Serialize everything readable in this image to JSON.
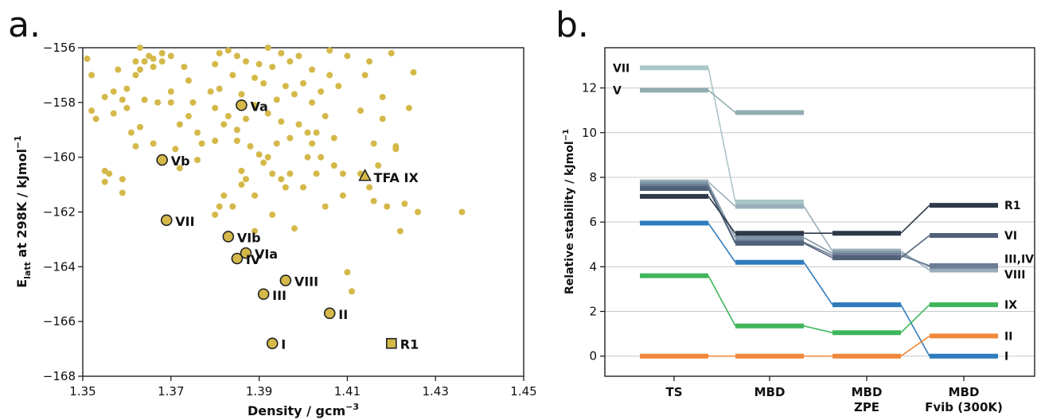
{
  "chart_data": [
    {
      "type": "scatter",
      "panel_label": "a.",
      "xlabel": "Density / gcm",
      "xlabel_sup": "−3",
      "ylabel_main": "E",
      "ylabel_sub": "latt",
      "ylabel_rest": " at 298K / kJmol",
      "ylabel_sup": "−1",
      "xlim": [
        1.35,
        1.45
      ],
      "ylim": [
        -168,
        -156
      ],
      "xticks": [
        1.35,
        1.37,
        1.39,
        1.41,
        1.43,
        1.45
      ],
      "xtick_labels": [
        "1.35",
        "1.37",
        "1.39",
        "1.41",
        "1.43",
        "1.45"
      ],
      "yticks": [
        -168,
        -166,
        -164,
        -162,
        -160,
        -158,
        -156
      ],
      "ytick_labels": [
        "−168",
        "−166",
        "−164",
        "−162",
        "−160",
        "−158",
        "−156"
      ],
      "marker_color": "#d4b94a",
      "grid": false,
      "background_points": [
        [
          1.351,
          -156.4
        ],
        [
          1.352,
          -157.0
        ],
        [
          1.352,
          -158.3
        ],
        [
          1.353,
          -158.6
        ],
        [
          1.355,
          -157.8
        ],
        [
          1.355,
          -160.5
        ],
        [
          1.355,
          -160.9
        ],
        [
          1.356,
          -160.6
        ],
        [
          1.357,
          -157.6
        ],
        [
          1.357,
          -158.4
        ],
        [
          1.358,
          -156.8
        ],
        [
          1.359,
          -157.9
        ],
        [
          1.359,
          -161.3
        ],
        [
          1.359,
          -160.8
        ],
        [
          1.36,
          -158.2
        ],
        [
          1.36,
          -157.5
        ],
        [
          1.361,
          -159.1
        ],
        [
          1.362,
          -156.5
        ],
        [
          1.362,
          -157.0
        ],
        [
          1.362,
          -159.6
        ],
        [
          1.363,
          -156.0
        ],
        [
          1.363,
          -156.8
        ],
        [
          1.363,
          -158.9
        ],
        [
          1.364,
          -156.5
        ],
        [
          1.364,
          -157.9
        ],
        [
          1.365,
          -156.3
        ],
        [
          1.366,
          -156.4
        ],
        [
          1.366,
          -156.7
        ],
        [
          1.366,
          -159.5
        ],
        [
          1.367,
          -158.0
        ],
        [
          1.368,
          -156.5
        ],
        [
          1.368,
          -156.2
        ],
        [
          1.37,
          -156.3
        ],
        [
          1.37,
          -157.6
        ],
        [
          1.37,
          -158.0
        ],
        [
          1.371,
          -159.7
        ],
        [
          1.372,
          -158.8
        ],
        [
          1.372,
          -160.4
        ],
        [
          1.373,
          -156.7
        ],
        [
          1.374,
          -157.2
        ],
        [
          1.374,
          -158.5
        ],
        [
          1.375,
          -158.0
        ],
        [
          1.376,
          -160.1
        ],
        [
          1.376,
          -159.1
        ],
        [
          1.377,
          -159.5
        ],
        [
          1.379,
          -157.6
        ],
        [
          1.38,
          -156.6
        ],
        [
          1.38,
          -158.2
        ],
        [
          1.38,
          -159.4
        ],
        [
          1.38,
          -162.1
        ],
        [
          1.381,
          -156.2
        ],
        [
          1.381,
          -157.5
        ],
        [
          1.381,
          -161.8
        ],
        [
          1.382,
          -158.8
        ],
        [
          1.382,
          -161.4
        ],
        [
          1.383,
          -158.5
        ],
        [
          1.383,
          -156.1
        ],
        [
          1.384,
          -157.0
        ],
        [
          1.384,
          -161.8
        ],
        [
          1.385,
          -159.0
        ],
        [
          1.385,
          -159.4
        ],
        [
          1.385,
          -156.3
        ],
        [
          1.386,
          -157.7
        ],
        [
          1.386,
          -160.5
        ],
        [
          1.386,
          -161.0
        ],
        [
          1.387,
          -156.5
        ],
        [
          1.387,
          -158.6
        ],
        [
          1.387,
          -160.8
        ],
        [
          1.388,
          -159.6
        ],
        [
          1.389,
          -157.1
        ],
        [
          1.389,
          -158.1
        ],
        [
          1.389,
          -161.4
        ],
        [
          1.389,
          -162.7
        ],
        [
          1.39,
          -156.6
        ],
        [
          1.39,
          -159.9
        ],
        [
          1.391,
          -160.2
        ],
        [
          1.391,
          -157.3
        ],
        [
          1.392,
          -156.0
        ],
        [
          1.392,
          -158.4
        ],
        [
          1.392,
          -160.0
        ],
        [
          1.393,
          -156.7
        ],
        [
          1.393,
          -160.6
        ],
        [
          1.393,
          -162.1
        ],
        [
          1.394,
          -157.9
        ],
        [
          1.394,
          -159.5
        ],
        [
          1.395,
          -156.2
        ],
        [
          1.395,
          -158.7
        ],
        [
          1.395,
          -160.8
        ],
        [
          1.396,
          -157.4
        ],
        [
          1.396,
          -161.1
        ],
        [
          1.397,
          -156.5
        ],
        [
          1.397,
          -159.3
        ],
        [
          1.397,
          -160.6
        ],
        [
          1.398,
          -157.7
        ],
        [
          1.398,
          -162.6
        ],
        [
          1.399,
          -156.3
        ],
        [
          1.399,
          -158.8
        ],
        [
          1.4,
          -157.3
        ],
        [
          1.4,
          -161.1
        ],
        [
          1.401,
          -159.1
        ],
        [
          1.401,
          -160.0
        ],
        [
          1.402,
          -156.8
        ],
        [
          1.402,
          -158.0
        ],
        [
          1.402,
          -159.5
        ],
        [
          1.403,
          -159.1
        ],
        [
          1.403,
          -160.6
        ],
        [
          1.404,
          -157.6
        ],
        [
          1.404,
          -160.0
        ],
        [
          1.405,
          -158.5
        ],
        [
          1.405,
          -161.8
        ],
        [
          1.406,
          -156.1
        ],
        [
          1.406,
          -157.0
        ],
        [
          1.407,
          -159.3
        ],
        [
          1.407,
          -160.3
        ],
        [
          1.408,
          -157.4
        ],
        [
          1.409,
          -161.4
        ],
        [
          1.409,
          -160.6
        ],
        [
          1.41,
          -156.3
        ],
        [
          1.41,
          -164.2
        ],
        [
          1.411,
          -164.9
        ],
        [
          1.413,
          -158.3
        ],
        [
          1.413,
          -160.6
        ],
        [
          1.414,
          -157.0
        ],
        [
          1.415,
          -156.5
        ],
        [
          1.415,
          -161.1
        ],
        [
          1.416,
          -159.5
        ],
        [
          1.416,
          -161.6
        ],
        [
          1.417,
          -160.3
        ],
        [
          1.418,
          -157.8
        ],
        [
          1.418,
          -158.6
        ],
        [
          1.419,
          -161.8
        ],
        [
          1.42,
          -156.2
        ],
        [
          1.421,
          -159.6
        ],
        [
          1.421,
          -159.7
        ],
        [
          1.422,
          -162.7
        ],
        [
          1.423,
          -161.7
        ],
        [
          1.424,
          -158.2
        ],
        [
          1.425,
          -156.9
        ],
        [
          1.426,
          -162.0
        ],
        [
          1.436,
          -162.0
        ]
      ],
      "highlighted_points": [
        {
          "label": "Va",
          "x": 1.386,
          "y": -158.1,
          "marker": "circle"
        },
        {
          "label": "Vb",
          "x": 1.368,
          "y": -160.1,
          "marker": "circle"
        },
        {
          "label": "TFA IX",
          "x": 1.414,
          "y": -160.7,
          "marker": "triangle"
        },
        {
          "label": "VII",
          "x": 1.369,
          "y": -162.3,
          "marker": "circle"
        },
        {
          "label": "VIb",
          "x": 1.383,
          "y": -162.9,
          "marker": "circle"
        },
        {
          "label": "VIa",
          "x": 1.387,
          "y": -163.5,
          "marker": "circle"
        },
        {
          "label": "IV",
          "x": 1.385,
          "y": -163.7,
          "marker": "circle"
        },
        {
          "label": "VIII",
          "x": 1.396,
          "y": -164.5,
          "marker": "circle"
        },
        {
          "label": "III",
          "x": 1.391,
          "y": -165.0,
          "marker": "circle"
        },
        {
          "label": "II",
          "x": 1.406,
          "y": -165.7,
          "marker": "circle"
        },
        {
          "label": "I",
          "x": 1.393,
          "y": -166.8,
          "marker": "circle"
        },
        {
          "label": "R1",
          "x": 1.42,
          "y": -166.8,
          "marker": "square"
        }
      ]
    },
    {
      "type": "line",
      "subtype": "energy-level diagram",
      "panel_label": "b.",
      "ylabel_main": "Relative stability / kJmol",
      "ylabel_sup": "−1",
      "categories": [
        {
          "line1": "TS",
          "line2": ""
        },
        {
          "line1": "MBD",
          "line2": ""
        },
        {
          "line1": "MBD",
          "line2": "ZPE"
        },
        {
          "line1": "MBD",
          "line2": "Fvib (300K)"
        }
      ],
      "ylim": [
        -0.9,
        13.8
      ],
      "yticks": [
        0,
        2,
        4,
        6,
        8,
        10,
        12
      ],
      "ytick_labels": [
        "0",
        "2",
        "4",
        "6",
        "8",
        "10",
        "12"
      ],
      "grid": true,
      "series": [
        {
          "name": "VII",
          "color": "#a9c6c8",
          "values": [
            12.9,
            6.9,
            null,
            null
          ]
        },
        {
          "name": "V",
          "color": "#92adb1",
          "values": [
            11.9,
            10.9,
            null,
            null
          ]
        },
        {
          "name": "VIII",
          "color": "#9aafba",
          "values": [
            7.8,
            6.7,
            4.7,
            3.85
          ]
        },
        {
          "name": "IV",
          "color": "#7e94a6",
          "values": [
            7.7,
            5.3,
            4.6,
            4.0
          ]
        },
        {
          "name": "III",
          "color": "#6b7c94",
          "values": [
            7.6,
            5.1,
            4.5,
            4.05
          ]
        },
        {
          "name": "VI",
          "color": "#52617a",
          "values": [
            7.5,
            5.05,
            4.4,
            5.4
          ]
        },
        {
          "name": "R1",
          "color": "#2d3848",
          "values": [
            7.15,
            5.5,
            5.5,
            6.75
          ]
        },
        {
          "name": "I",
          "color": "#2e7bbd",
          "values": [
            5.95,
            4.2,
            2.3,
            0.0
          ]
        },
        {
          "name": "IX",
          "color": "#3fb55a",
          "values": [
            3.6,
            1.35,
            1.05,
            2.3
          ]
        },
        {
          "name": "II",
          "color": "#f0883a",
          "values": [
            0.0,
            0.0,
            0.0,
            0.9
          ]
        }
      ],
      "level_labels_left": [
        {
          "text": "VII",
          "y": 12.9
        },
        {
          "text": "V",
          "y": 11.9
        }
      ],
      "level_labels_right": [
        {
          "text": "R1",
          "y": 6.75
        },
        {
          "text": "VI",
          "y": 5.4
        },
        {
          "text": "III,IV",
          "y": 4.35
        },
        {
          "text": "VIII",
          "y": 3.65
        },
        {
          "text": "IX",
          "y": 2.3
        },
        {
          "text": "II",
          "y": 0.9
        },
        {
          "text": "I",
          "y": 0.0
        }
      ]
    }
  ]
}
